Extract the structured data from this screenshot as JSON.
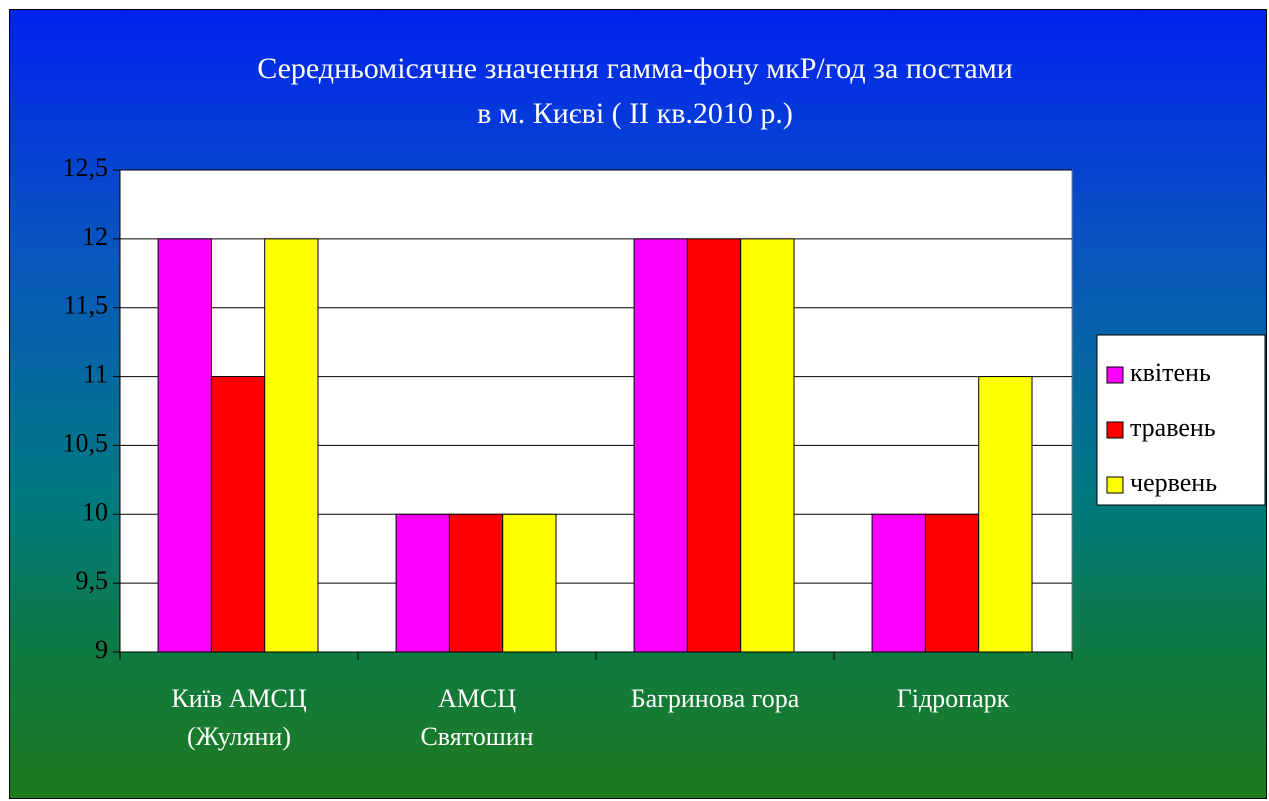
{
  "chart_data": {
    "type": "bar",
    "title": "Середньомісячне значення гамма-фону мкР/год за постами\nв м. Києві ( II кв.2010 р.)",
    "categories": [
      "Київ АМСЦ\n(Жуляни)",
      "АМСЦ\nСвятошин",
      "Багринова гора",
      "Гідропарк"
    ],
    "series": [
      {
        "name": "квітень",
        "color": "#ff00ff",
        "values": [
          12,
          10,
          12,
          10
        ]
      },
      {
        "name": "травень",
        "color": "#ff0000",
        "values": [
          11,
          10,
          12,
          10
        ]
      },
      {
        "name": "червень",
        "color": "#ffff00",
        "values": [
          12,
          10,
          12,
          11
        ]
      }
    ],
    "ylim": [
      9,
      12.5
    ],
    "yticks": [
      9,
      {
        "value": 9.5,
        "label": "9,5"
      },
      10,
      {
        "value": 10.5,
        "label": "10,5"
      },
      11,
      {
        "value": 11.5,
        "label": "11,5"
      },
      12,
      {
        "value": 12.5,
        "label": "12,5"
      }
    ],
    "grid": true,
    "legend": "right"
  }
}
